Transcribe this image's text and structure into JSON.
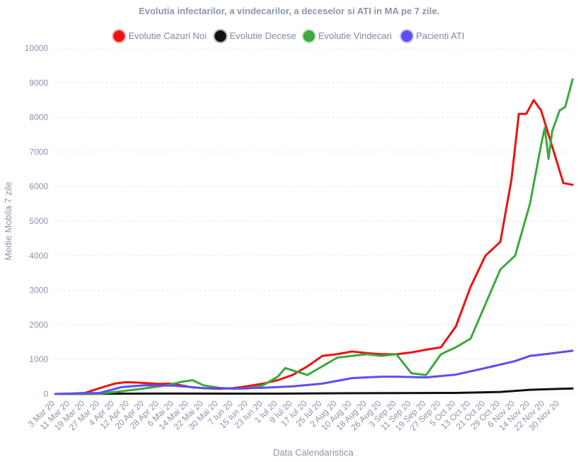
{
  "chart_data": {
    "type": "line",
    "title": "Evolutia infectarilor, a vindecarilor, a deceselor si ATI in MA pe 7 zile.",
    "xlabel": "Data Calendaristica",
    "ylabel": "Medie Mobila 7 zile",
    "ylim": [
      0,
      10000
    ],
    "y_ticks": [
      "0",
      "1000",
      "2000",
      "3000",
      "4000",
      "5000",
      "6000",
      "7000",
      "8000",
      "9000",
      "10000"
    ],
    "x_range": [
      "2020-03-03",
      "2020-12-07"
    ],
    "x_tick_dates": [
      "2020-03-03",
      "2020-03-11",
      "2020-03-19",
      "2020-03-27",
      "2020-04-04",
      "2020-04-12",
      "2020-04-20",
      "2020-04-28",
      "2020-05-06",
      "2020-05-14",
      "2020-05-22",
      "2020-05-30",
      "2020-06-07",
      "2020-06-15",
      "2020-06-23",
      "2020-07-01",
      "2020-07-09",
      "2020-07-17",
      "2020-07-25",
      "2020-08-02",
      "2020-08-10",
      "2020-08-18",
      "2020-08-26",
      "2020-09-03",
      "2020-09-11",
      "2020-09-19",
      "2020-09-27",
      "2020-10-05",
      "2020-10-13",
      "2020-10-21",
      "2020-10-29",
      "2020-11-06",
      "2020-11-14",
      "2020-11-22",
      "2020-11-30"
    ],
    "x_tick_labels": [
      "3 Mar 20",
      "11 Mar 20",
      "19 Mar 20",
      "27 Mar 20",
      "4 Apr 20",
      "12 Apr 20",
      "20 Apr 20",
      "28 Apr 20",
      "6 Mai 20",
      "14 Mai 20",
      "22 Mai 20",
      "30 Mai 20",
      "7 Iun 20",
      "15 Iun 20",
      "23 Iun 20",
      "1 Iul 20",
      "9 Iul 20",
      "17 Iul 20",
      "25 Iul 20",
      "2 Aug 20",
      "10 Aug 20",
      "18 Aug 20",
      "26 Aug 20",
      "3 Sep 20",
      "11 Sep 20",
      "19 Sep 20",
      "27 Sep 20",
      "5 Oct 20",
      "13 Oct 20",
      "21 Oct 20",
      "29 Oct 20",
      "6 Nov 20",
      "14 Nov 20",
      "22 Nov 20",
      "30 Nov 20"
    ],
    "legend_position": "top",
    "grid": true,
    "series": [
      {
        "name": "Evolutie Cazuri Noi",
        "color": "#ee1111",
        "x": [
          "2020-03-03",
          "2020-03-11",
          "2020-03-19",
          "2020-03-27",
          "2020-04-04",
          "2020-04-10",
          "2020-04-16",
          "2020-04-22",
          "2020-04-28",
          "2020-05-04",
          "2020-05-10",
          "2020-05-16",
          "2020-05-22",
          "2020-05-30",
          "2020-06-07",
          "2020-06-15",
          "2020-06-23",
          "2020-07-01",
          "2020-07-09",
          "2020-07-17",
          "2020-07-25",
          "2020-08-02",
          "2020-08-10",
          "2020-08-18",
          "2020-08-26",
          "2020-09-03",
          "2020-09-11",
          "2020-09-19",
          "2020-09-27",
          "2020-10-05",
          "2020-10-13",
          "2020-10-21",
          "2020-10-29",
          "2020-11-04",
          "2020-11-08",
          "2020-11-12",
          "2020-11-16",
          "2020-11-20",
          "2020-11-24",
          "2020-11-28",
          "2020-12-02",
          "2020-12-07"
        ],
        "values": [
          0,
          10,
          30,
          170,
          300,
          340,
          330,
          310,
          290,
          300,
          250,
          190,
          170,
          150,
          170,
          230,
          300,
          400,
          550,
          800,
          1100,
          1150,
          1230,
          1180,
          1150,
          1150,
          1200,
          1280,
          1350,
          1950,
          3100,
          4000,
          4400,
          6200,
          8100,
          8100,
          8500,
          8200,
          7500,
          6800,
          6100,
          6050
        ]
      },
      {
        "name": "Evolutie Decese",
        "color": "#111111",
        "x": [
          "2020-03-03",
          "2020-03-27",
          "2020-04-12",
          "2020-05-06",
          "2020-06-07",
          "2020-07-01",
          "2020-08-02",
          "2020-09-03",
          "2020-10-05",
          "2020-10-29",
          "2020-11-14",
          "2020-11-30",
          "2020-12-07"
        ],
        "values": [
          0,
          5,
          10,
          12,
          10,
          10,
          20,
          25,
          30,
          60,
          120,
          150,
          160
        ]
      },
      {
        "name": "Evolutie Vindecari",
        "color": "#3da83d",
        "x": [
          "2020-03-03",
          "2020-03-27",
          "2020-04-08",
          "2020-04-20",
          "2020-05-02",
          "2020-05-10",
          "2020-05-16",
          "2020-05-22",
          "2020-05-30",
          "2020-06-07",
          "2020-06-15",
          "2020-06-23",
          "2020-07-01",
          "2020-07-05",
          "2020-07-11",
          "2020-07-17",
          "2020-07-25",
          "2020-08-02",
          "2020-08-10",
          "2020-08-18",
          "2020-08-26",
          "2020-09-03",
          "2020-09-11",
          "2020-09-19",
          "2020-09-27",
          "2020-10-05",
          "2020-10-13",
          "2020-10-21",
          "2020-10-29",
          "2020-11-06",
          "2020-11-14",
          "2020-11-20",
          "2020-11-22",
          "2020-11-24",
          "2020-11-26",
          "2020-11-30",
          "2020-12-03",
          "2020-12-07"
        ],
        "values": [
          0,
          10,
          80,
          160,
          250,
          350,
          400,
          250,
          180,
          150,
          160,
          250,
          500,
          750,
          650,
          550,
          800,
          1050,
          1100,
          1150,
          1100,
          1150,
          600,
          550,
          1150,
          1350,
          1600,
          2600,
          3600,
          4000,
          5500,
          7200,
          7700,
          6800,
          7600,
          8200,
          8300,
          9100
        ]
      },
      {
        "name": "Pacienti ATI",
        "color": "#5b4ff0",
        "x": [
          "2020-03-03",
          "2020-03-27",
          "2020-04-08",
          "2020-04-20",
          "2020-05-06",
          "2020-05-22",
          "2020-06-07",
          "2020-06-23",
          "2020-07-09",
          "2020-07-25",
          "2020-08-10",
          "2020-08-26",
          "2020-09-03",
          "2020-09-19",
          "2020-10-05",
          "2020-10-21",
          "2020-11-06",
          "2020-11-14",
          "2020-11-22",
          "2020-12-07"
        ],
        "values": [
          0,
          30,
          200,
          250,
          240,
          170,
          160,
          180,
          220,
          300,
          460,
          500,
          500,
          480,
          560,
          750,
          950,
          1100,
          1150,
          1250
        ]
      }
    ]
  }
}
